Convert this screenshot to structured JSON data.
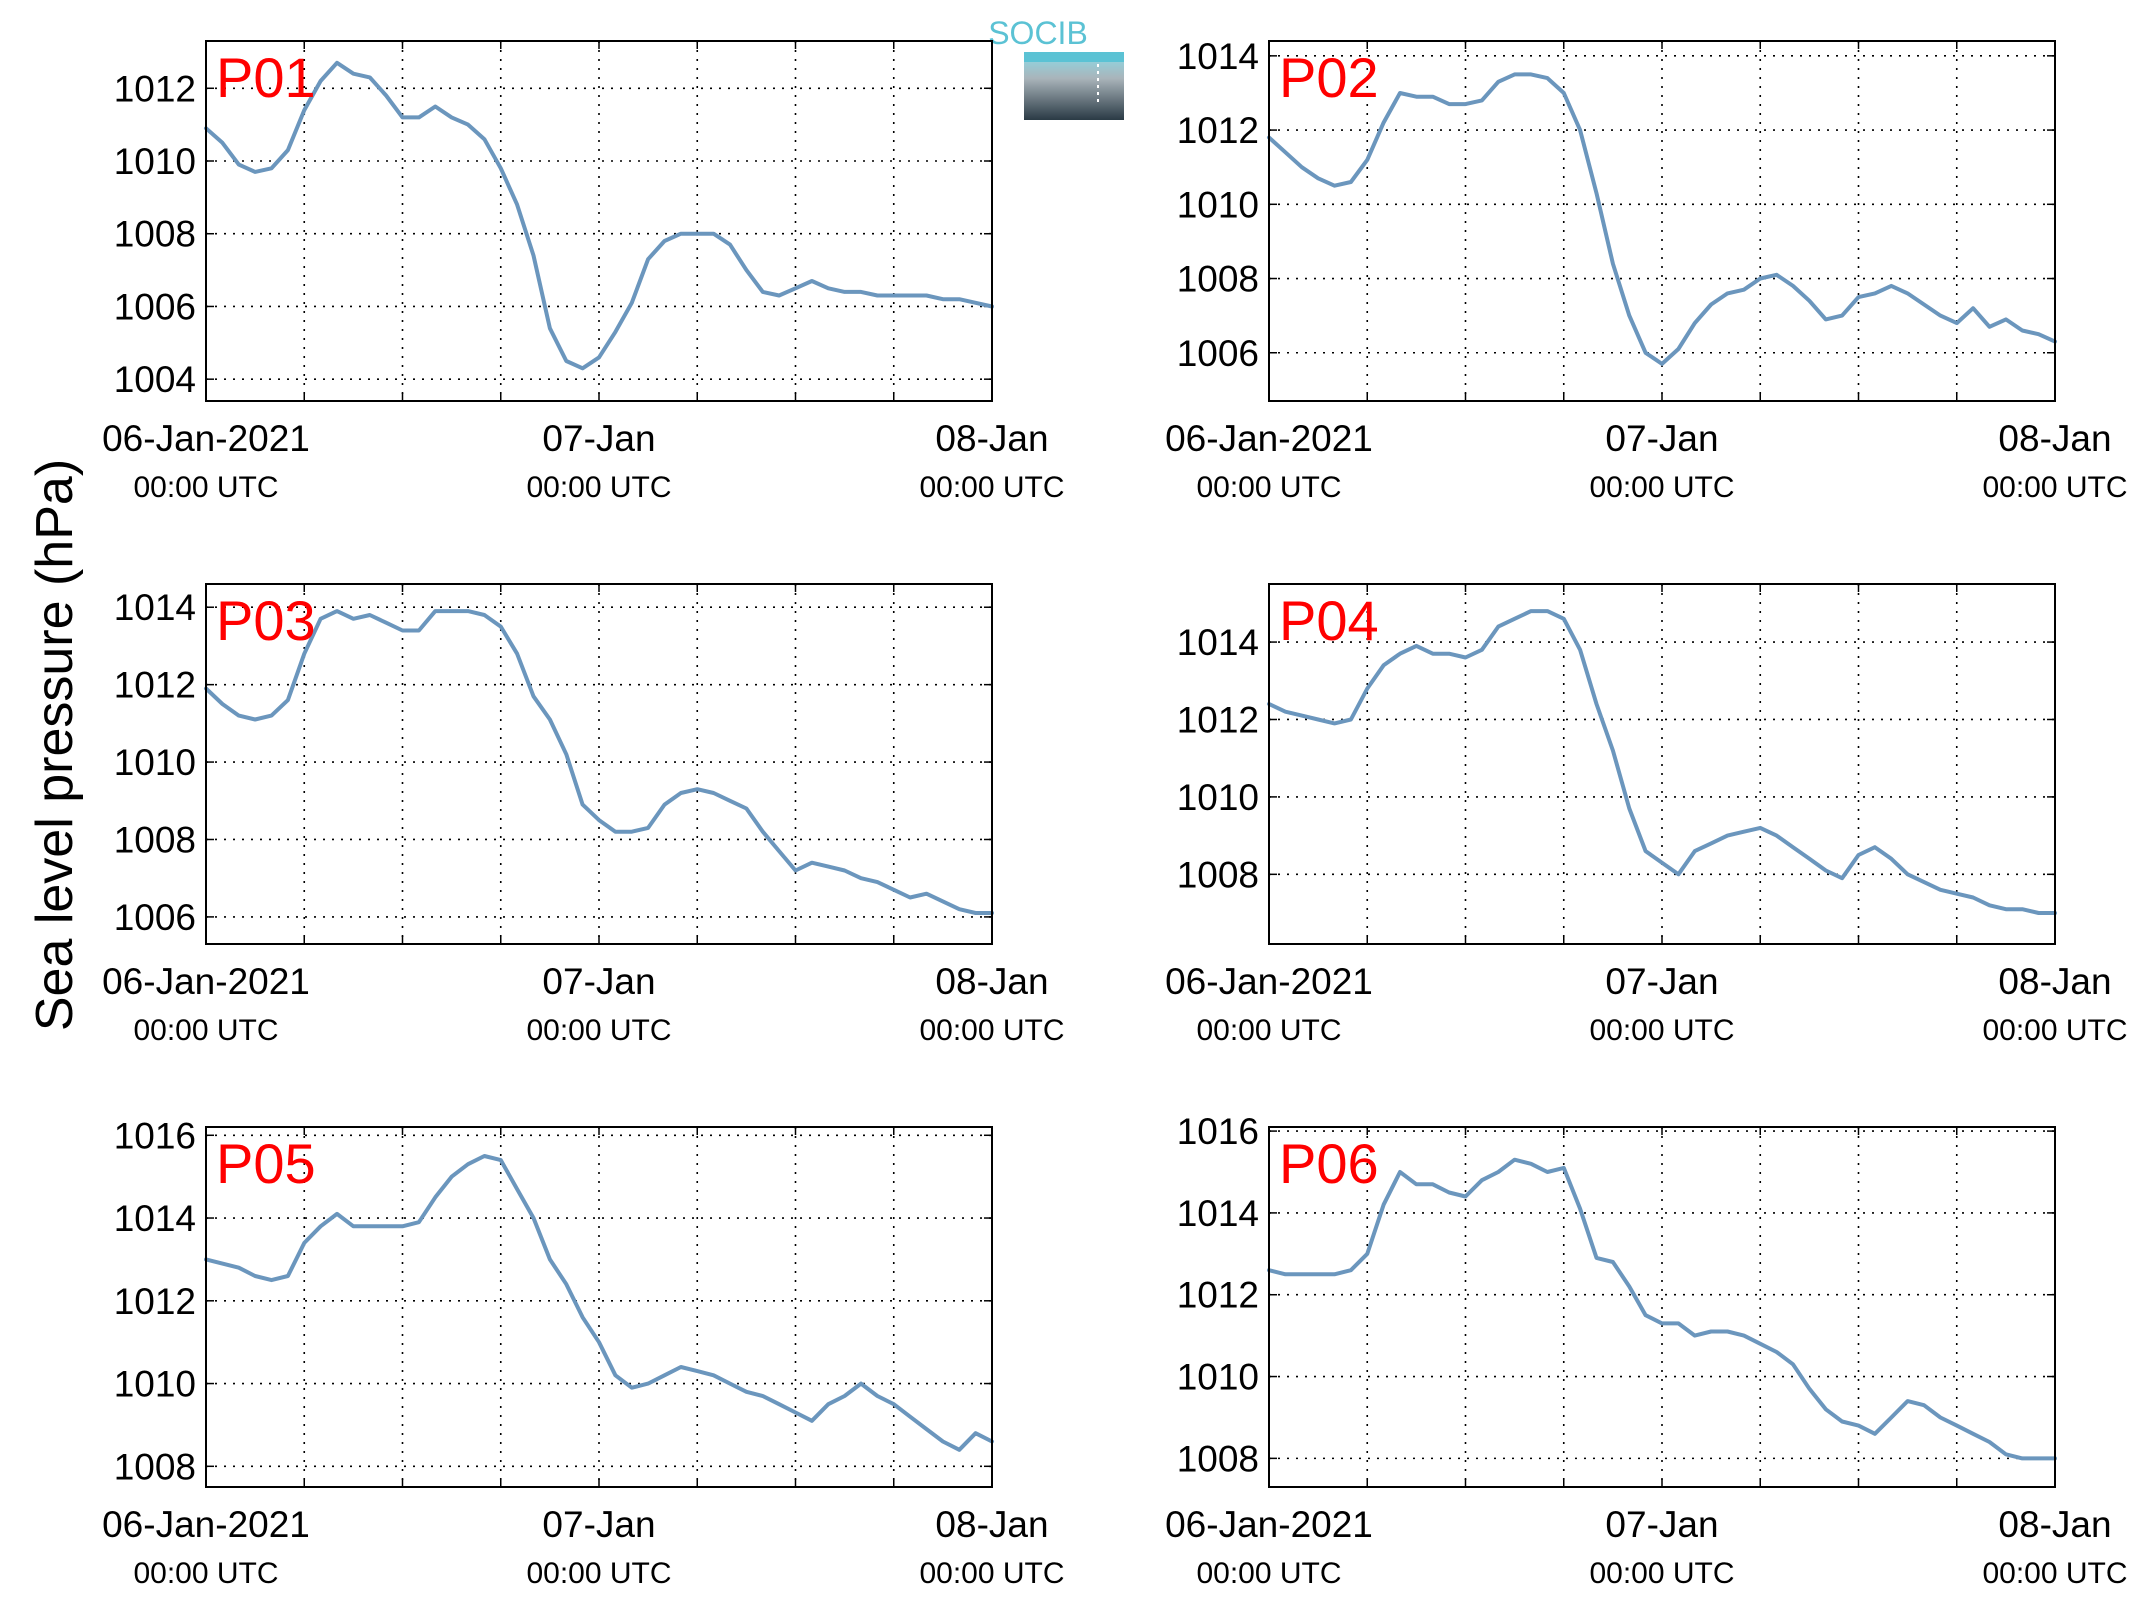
{
  "figure": {
    "ylabel": "Sea level pressure (hPa)",
    "logo_text": "SOCIB",
    "colors": {
      "line": "#6b96bd",
      "panel_label": "#ff0000",
      "logo_top": "#5bc2d4",
      "logo_bottom": "#2a3a45",
      "grid": "#000000"
    }
  },
  "chart_data": [
    {
      "type": "line",
      "panel_label": "P01",
      "x_unit": "hours since 06-Jan-2021 00:00 UTC",
      "xlim": [
        0,
        48
      ],
      "ylim": [
        1003.4,
        1013.3
      ],
      "yticks": [
        1004,
        1006,
        1008,
        1010,
        1012
      ],
      "ytick_labels": [
        "1004",
        "1006",
        "1008",
        "1010",
        "1012"
      ],
      "xtick_labels": [
        {
          "date": "06-Jan-2021",
          "time": "00:00 UTC"
        },
        {
          "date": "07-Jan",
          "time": "00:00 UTC"
        },
        {
          "date": "08-Jan",
          "time": "00:00 UTC"
        }
      ],
      "grid": true,
      "x": [
        0,
        1,
        2,
        3,
        4,
        5,
        6,
        7,
        8,
        9,
        10,
        11,
        12,
        13,
        14,
        15,
        16,
        17,
        18,
        19,
        20,
        21,
        22,
        23,
        24,
        25,
        26,
        27,
        28,
        29,
        30,
        31,
        32,
        33,
        34,
        35,
        36,
        37,
        38,
        39,
        40,
        41,
        42,
        43,
        44,
        45,
        46,
        47,
        48
      ],
      "values": [
        1010.9,
        1010.5,
        1009.9,
        1009.7,
        1009.8,
        1010.3,
        1011.4,
        1012.2,
        1012.7,
        1012.4,
        1012.3,
        1011.8,
        1011.2,
        1011.2,
        1011.5,
        1011.2,
        1011.0,
        1010.6,
        1009.8,
        1008.8,
        1007.4,
        1005.4,
        1004.5,
        1004.3,
        1004.6,
        1005.3,
        1006.1,
        1007.3,
        1007.8,
        1008.0,
        1008.0,
        1008.0,
        1007.7,
        1007.0,
        1006.4,
        1006.3,
        1006.5,
        1006.7,
        1006.5,
        1006.4,
        1006.4,
        1006.3,
        1006.3,
        1006.3,
        1006.3,
        1006.2,
        1006.2,
        1006.1,
        1006.0
      ]
    },
    {
      "type": "line",
      "panel_label": "P02",
      "x_unit": "hours since 06-Jan-2021 00:00 UTC",
      "xlim": [
        0,
        48
      ],
      "ylim": [
        1004.7,
        1014.4
      ],
      "yticks": [
        1006,
        1008,
        1010,
        1012,
        1014
      ],
      "ytick_labels": [
        "1006",
        "1008",
        "1010",
        "1012",
        "1014"
      ],
      "xtick_labels": [
        {
          "date": "06-Jan-2021",
          "time": "00:00 UTC"
        },
        {
          "date": "07-Jan",
          "time": "00:00 UTC"
        },
        {
          "date": "08-Jan",
          "time": "00:00 UTC"
        }
      ],
      "grid": true,
      "x": [
        0,
        1,
        2,
        3,
        4,
        5,
        6,
        7,
        8,
        9,
        10,
        11,
        12,
        13,
        14,
        15,
        16,
        17,
        18,
        19,
        20,
        21,
        22,
        23,
        24,
        25,
        26,
        27,
        28,
        29,
        30,
        31,
        32,
        33,
        34,
        35,
        36,
        37,
        38,
        39,
        40,
        41,
        42,
        43,
        44,
        45,
        46,
        47,
        48
      ],
      "values": [
        1011.8,
        1011.4,
        1011.0,
        1010.7,
        1010.5,
        1010.6,
        1011.2,
        1012.2,
        1013.0,
        1012.9,
        1012.9,
        1012.7,
        1012.7,
        1012.8,
        1013.3,
        1013.5,
        1013.5,
        1013.4,
        1013.0,
        1012.0,
        1010.3,
        1008.4,
        1007.0,
        1006.0,
        1005.7,
        1006.1,
        1006.8,
        1007.3,
        1007.6,
        1007.7,
        1008.0,
        1008.1,
        1007.8,
        1007.4,
        1006.9,
        1007.0,
        1007.5,
        1007.6,
        1007.8,
        1007.6,
        1007.3,
        1007.0,
        1006.8,
        1007.2,
        1006.7,
        1006.9,
        1006.6,
        1006.5,
        1006.3
      ]
    },
    {
      "type": "line",
      "panel_label": "P03",
      "x_unit": "hours since 06-Jan-2021 00:00 UTC",
      "xlim": [
        0,
        48
      ],
      "ylim": [
        1005.3,
        1014.6
      ],
      "yticks": [
        1006,
        1008,
        1010,
        1012,
        1014
      ],
      "ytick_labels": [
        "1006",
        "1008",
        "1010",
        "1012",
        "1014"
      ],
      "xtick_labels": [
        {
          "date": "06-Jan-2021",
          "time": "00:00 UTC"
        },
        {
          "date": "07-Jan",
          "time": "00:00 UTC"
        },
        {
          "date": "08-Jan",
          "time": "00:00 UTC"
        }
      ],
      "grid": true,
      "x": [
        0,
        1,
        2,
        3,
        4,
        5,
        6,
        7,
        8,
        9,
        10,
        11,
        12,
        13,
        14,
        15,
        16,
        17,
        18,
        19,
        20,
        21,
        22,
        23,
        24,
        25,
        26,
        27,
        28,
        29,
        30,
        31,
        32,
        33,
        34,
        35,
        36,
        37,
        38,
        39,
        40,
        41,
        42,
        43,
        44,
        45,
        46,
        47,
        48
      ],
      "values": [
        1011.9,
        1011.5,
        1011.2,
        1011.1,
        1011.2,
        1011.6,
        1012.8,
        1013.7,
        1013.9,
        1013.7,
        1013.8,
        1013.6,
        1013.4,
        1013.4,
        1013.9,
        1013.9,
        1013.9,
        1013.8,
        1013.5,
        1012.8,
        1011.7,
        1011.1,
        1010.2,
        1008.9,
        1008.5,
        1008.2,
        1008.2,
        1008.3,
        1008.9,
        1009.2,
        1009.3,
        1009.2,
        1009.0,
        1008.8,
        1008.2,
        1007.7,
        1007.2,
        1007.4,
        1007.3,
        1007.2,
        1007.0,
        1006.9,
        1006.7,
        1006.5,
        1006.6,
        1006.4,
        1006.2,
        1006.1,
        1006.1
      ]
    },
    {
      "type": "line",
      "panel_label": "P04",
      "x_unit": "hours since 06-Jan-2021 00:00 UTC",
      "xlim": [
        0,
        48
      ],
      "ylim": [
        1006.2,
        1015.5
      ],
      "yticks": [
        1008,
        1010,
        1012,
        1014
      ],
      "ytick_labels": [
        "1008",
        "1010",
        "1012",
        "1014"
      ],
      "xtick_labels": [
        {
          "date": "06-Jan-2021",
          "time": "00:00 UTC"
        },
        {
          "date": "07-Jan",
          "time": "00:00 UTC"
        },
        {
          "date": "08-Jan",
          "time": "00:00 UTC"
        }
      ],
      "grid": true,
      "x": [
        0,
        1,
        2,
        3,
        4,
        5,
        6,
        7,
        8,
        9,
        10,
        11,
        12,
        13,
        14,
        15,
        16,
        17,
        18,
        19,
        20,
        21,
        22,
        23,
        24,
        25,
        26,
        27,
        28,
        29,
        30,
        31,
        32,
        33,
        34,
        35,
        36,
        37,
        38,
        39,
        40,
        41,
        42,
        43,
        44,
        45,
        46,
        47,
        48
      ],
      "values": [
        1012.4,
        1012.2,
        1012.1,
        1012.0,
        1011.9,
        1012.0,
        1012.8,
        1013.4,
        1013.7,
        1013.9,
        1013.7,
        1013.7,
        1013.6,
        1013.8,
        1014.4,
        1014.6,
        1014.8,
        1014.8,
        1014.6,
        1013.8,
        1012.4,
        1011.2,
        1009.7,
        1008.6,
        1008.3,
        1008.0,
        1008.6,
        1008.8,
        1009.0,
        1009.1,
        1009.2,
        1009.0,
        1008.7,
        1008.4,
        1008.1,
        1007.9,
        1008.5,
        1008.7,
        1008.4,
        1008.0,
        1007.8,
        1007.6,
        1007.5,
        1007.4,
        1007.2,
        1007.1,
        1007.1,
        1007.0,
        1007.0
      ]
    },
    {
      "type": "line",
      "panel_label": "P05",
      "x_unit": "hours since 06-Jan-2021 00:00 UTC",
      "xlim": [
        0,
        48
      ],
      "ylim": [
        1007.5,
        1016.2
      ],
      "yticks": [
        1008,
        1010,
        1012,
        1014,
        1016
      ],
      "ytick_labels": [
        "1008",
        "1010",
        "1012",
        "1014",
        "1016"
      ],
      "xtick_labels": [
        {
          "date": "06-Jan-2021",
          "time": "00:00 UTC"
        },
        {
          "date": "07-Jan",
          "time": "00:00 UTC"
        },
        {
          "date": "08-Jan",
          "time": "00:00 UTC"
        }
      ],
      "grid": true,
      "x": [
        0,
        1,
        2,
        3,
        4,
        5,
        6,
        7,
        8,
        9,
        10,
        11,
        12,
        13,
        14,
        15,
        16,
        17,
        18,
        19,
        20,
        21,
        22,
        23,
        24,
        25,
        26,
        27,
        28,
        29,
        30,
        31,
        32,
        33,
        34,
        35,
        36,
        37,
        38,
        39,
        40,
        41,
        42,
        43,
        44,
        45,
        46,
        47,
        48
      ],
      "values": [
        1013.0,
        1012.9,
        1012.8,
        1012.6,
        1012.5,
        1012.6,
        1013.4,
        1013.8,
        1014.1,
        1013.8,
        1013.8,
        1013.8,
        1013.8,
        1013.9,
        1014.5,
        1015.0,
        1015.3,
        1015.5,
        1015.4,
        1014.7,
        1014.0,
        1013.0,
        1012.4,
        1011.6,
        1011.0,
        1010.2,
        1009.9,
        1010.0,
        1010.2,
        1010.4,
        1010.3,
        1010.2,
        1010.0,
        1009.8,
        1009.7,
        1009.5,
        1009.3,
        1009.1,
        1009.5,
        1009.7,
        1010.0,
        1009.7,
        1009.5,
        1009.2,
        1008.9,
        1008.6,
        1008.4,
        1008.8,
        1008.6
      ]
    },
    {
      "type": "line",
      "panel_label": "P06",
      "x_unit": "hours since 06-Jan-2021 00:00 UTC",
      "xlim": [
        0,
        48
      ],
      "ylim": [
        1007.3,
        1016.1
      ],
      "yticks": [
        1008,
        1010,
        1012,
        1014,
        1016
      ],
      "ytick_labels": [
        "1008",
        "1010",
        "1012",
        "1014",
        "1016"
      ],
      "xtick_labels": [
        {
          "date": "06-Jan-2021",
          "time": "00:00 UTC"
        },
        {
          "date": "07-Jan",
          "time": "00:00 UTC"
        },
        {
          "date": "08-Jan",
          "time": "00:00 UTC"
        }
      ],
      "grid": true,
      "x": [
        0,
        1,
        2,
        3,
        4,
        5,
        6,
        7,
        8,
        9,
        10,
        11,
        12,
        13,
        14,
        15,
        16,
        17,
        18,
        19,
        20,
        21,
        22,
        23,
        24,
        25,
        26,
        27,
        28,
        29,
        30,
        31,
        32,
        33,
        34,
        35,
        36,
        37,
        38,
        39,
        40,
        41,
        42,
        43,
        44,
        45,
        46,
        47,
        48
      ],
      "values": [
        1012.6,
        1012.5,
        1012.5,
        1012.5,
        1012.5,
        1012.6,
        1013.0,
        1014.2,
        1015.0,
        1014.7,
        1014.7,
        1014.5,
        1014.4,
        1014.8,
        1015.0,
        1015.3,
        1015.2,
        1015.0,
        1015.1,
        1014.1,
        1012.9,
        1012.8,
        1012.2,
        1011.5,
        1011.3,
        1011.3,
        1011.0,
        1011.1,
        1011.1,
        1011.0,
        1010.8,
        1010.6,
        1010.3,
        1009.7,
        1009.2,
        1008.9,
        1008.8,
        1008.6,
        1009.0,
        1009.4,
        1009.3,
        1009.0,
        1008.8,
        1008.6,
        1008.4,
        1008.1,
        1008.0,
        1008.0,
        1008.0
      ]
    }
  ]
}
